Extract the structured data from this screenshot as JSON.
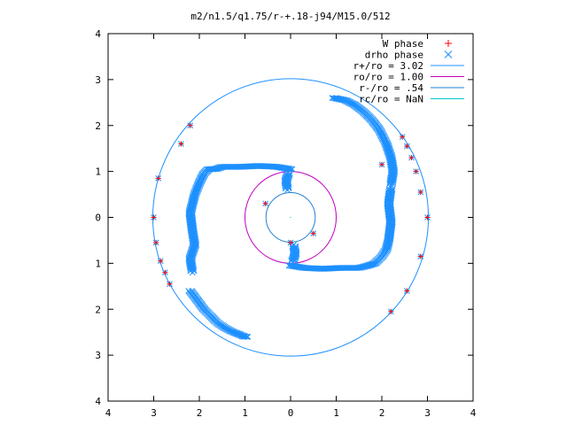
{
  "chart_data": {
    "type": "scatter",
    "title": "m2/n1.5/q1.75/r-+.18-j94/M15.0/512",
    "xlabel": "",
    "ylabel": "",
    "xlim": [
      -4,
      4
    ],
    "ylim": [
      -4,
      4
    ],
    "x_ticks": [
      -4,
      -3,
      -2,
      -1,
      0,
      1,
      2,
      3,
      4
    ],
    "y_ticks": [
      -4,
      -3,
      -2,
      -1,
      0,
      1,
      2,
      3,
      4
    ],
    "x_tick_labels": [
      "4",
      "3",
      "2",
      "1",
      "0",
      "1",
      "2",
      "3",
      "4"
    ],
    "y_tick_labels": [
      "4",
      "3",
      "2",
      "1",
      "0",
      "1",
      "2",
      "3",
      "4"
    ],
    "grid": false,
    "legend_position": "top-right",
    "series": [
      {
        "name": "W phase",
        "marker": "plus",
        "color": "#ff0000",
        "note_points": [
          {
            "x": -3.0,
            "y": 0.0
          },
          {
            "x": -2.95,
            "y": -0.55
          },
          {
            "x": -2.85,
            "y": -0.95
          },
          {
            "x": -2.75,
            "y": -1.2
          },
          {
            "x": -2.65,
            "y": -1.45
          },
          {
            "x": -2.4,
            "y": 1.6
          },
          {
            "x": -2.2,
            "y": 2.0
          },
          {
            "x": -2.9,
            "y": 0.85
          },
          {
            "x": 3.0,
            "y": 0.0
          },
          {
            "x": 2.85,
            "y": 0.55
          },
          {
            "x": 2.75,
            "y": 1.0
          },
          {
            "x": 2.65,
            "y": 1.3
          },
          {
            "x": 2.55,
            "y": 1.55
          },
          {
            "x": 2.45,
            "y": 1.75
          },
          {
            "x": 2.85,
            "y": -0.85
          },
          {
            "x": 2.55,
            "y": -1.6
          },
          {
            "x": 2.2,
            "y": -2.05
          },
          {
            "x": -0.55,
            "y": 0.3
          },
          {
            "x": 0.5,
            "y": -0.35
          },
          {
            "x": 0.0,
            "y": -0.55
          },
          {
            "x": 2.0,
            "y": 1.15
          }
        ]
      },
      {
        "name": "drho phase",
        "marker": "cross",
        "color": "#1e90ff",
        "arms": [
          {
            "x": [
              0.0,
              -0.3,
              -0.7,
              -1.1,
              -1.5,
              -1.65,
              -1.8,
              -1.9,
              -2.0,
              -2.1,
              -2.2,
              -2.15,
              -2.1,
              -2.2,
              -2.15
            ],
            "y": [
              1.05,
              1.1,
              1.12,
              1.1,
              1.1,
              1.05,
              1.05,
              0.95,
              0.75,
              0.5,
              0.1,
              -0.3,
              -0.6,
              -0.9,
              -1.2
            ]
          },
          {
            "x": [
              0.0,
              0.3,
              0.7,
              1.1,
              1.5,
              1.7,
              1.85,
              2.0,
              2.1,
              2.15,
              2.2,
              2.15,
              2.2
            ],
            "y": [
              -1.05,
              -1.1,
              -1.12,
              -1.1,
              -1.1,
              -1.05,
              -1.0,
              -0.85,
              -0.7,
              -0.5,
              -0.1,
              0.3,
              0.65
            ]
          },
          {
            "x": [
              -0.05,
              -0.1,
              -0.07
            ],
            "y": [
              0.95,
              0.8,
              0.6
            ]
          },
          {
            "x": [
              0.05,
              0.1,
              0.07
            ],
            "y": [
              -0.95,
              -0.8,
              -0.6
            ]
          },
          {
            "x": [
              -2.2,
              -2.05,
              -1.9,
              -1.75,
              -1.6,
              -1.45,
              -1.3,
              -1.15,
              -1.0,
              -0.95
            ],
            "y": [
              -1.6,
              -1.8,
              -2.0,
              -2.15,
              -2.3,
              -2.4,
              -2.48,
              -2.54,
              -2.6,
              -2.6
            ]
          },
          {
            "x": [
              0.95,
              1.2,
              1.4,
              1.6,
              1.8,
              1.95,
              2.1,
              2.2,
              2.25,
              2.2
            ],
            "y": [
              2.6,
              2.55,
              2.45,
              2.3,
              2.1,
              1.9,
              1.6,
              1.3,
              1.0,
              0.7
            ]
          }
        ]
      }
    ],
    "circles": [
      {
        "name": "r+/ro = 3.02",
        "radius": 3.02,
        "color": "#1e90ff"
      },
      {
        "name": "ro/ro = 1.00",
        "radius": 1.0,
        "color": "#c000c0"
      },
      {
        "name": "r-/ro = .54",
        "radius": 0.54,
        "color": "#1e7fd0"
      },
      {
        "name": "rc/ro = NaN",
        "radius": null,
        "color": "#00c8c8"
      }
    ]
  }
}
